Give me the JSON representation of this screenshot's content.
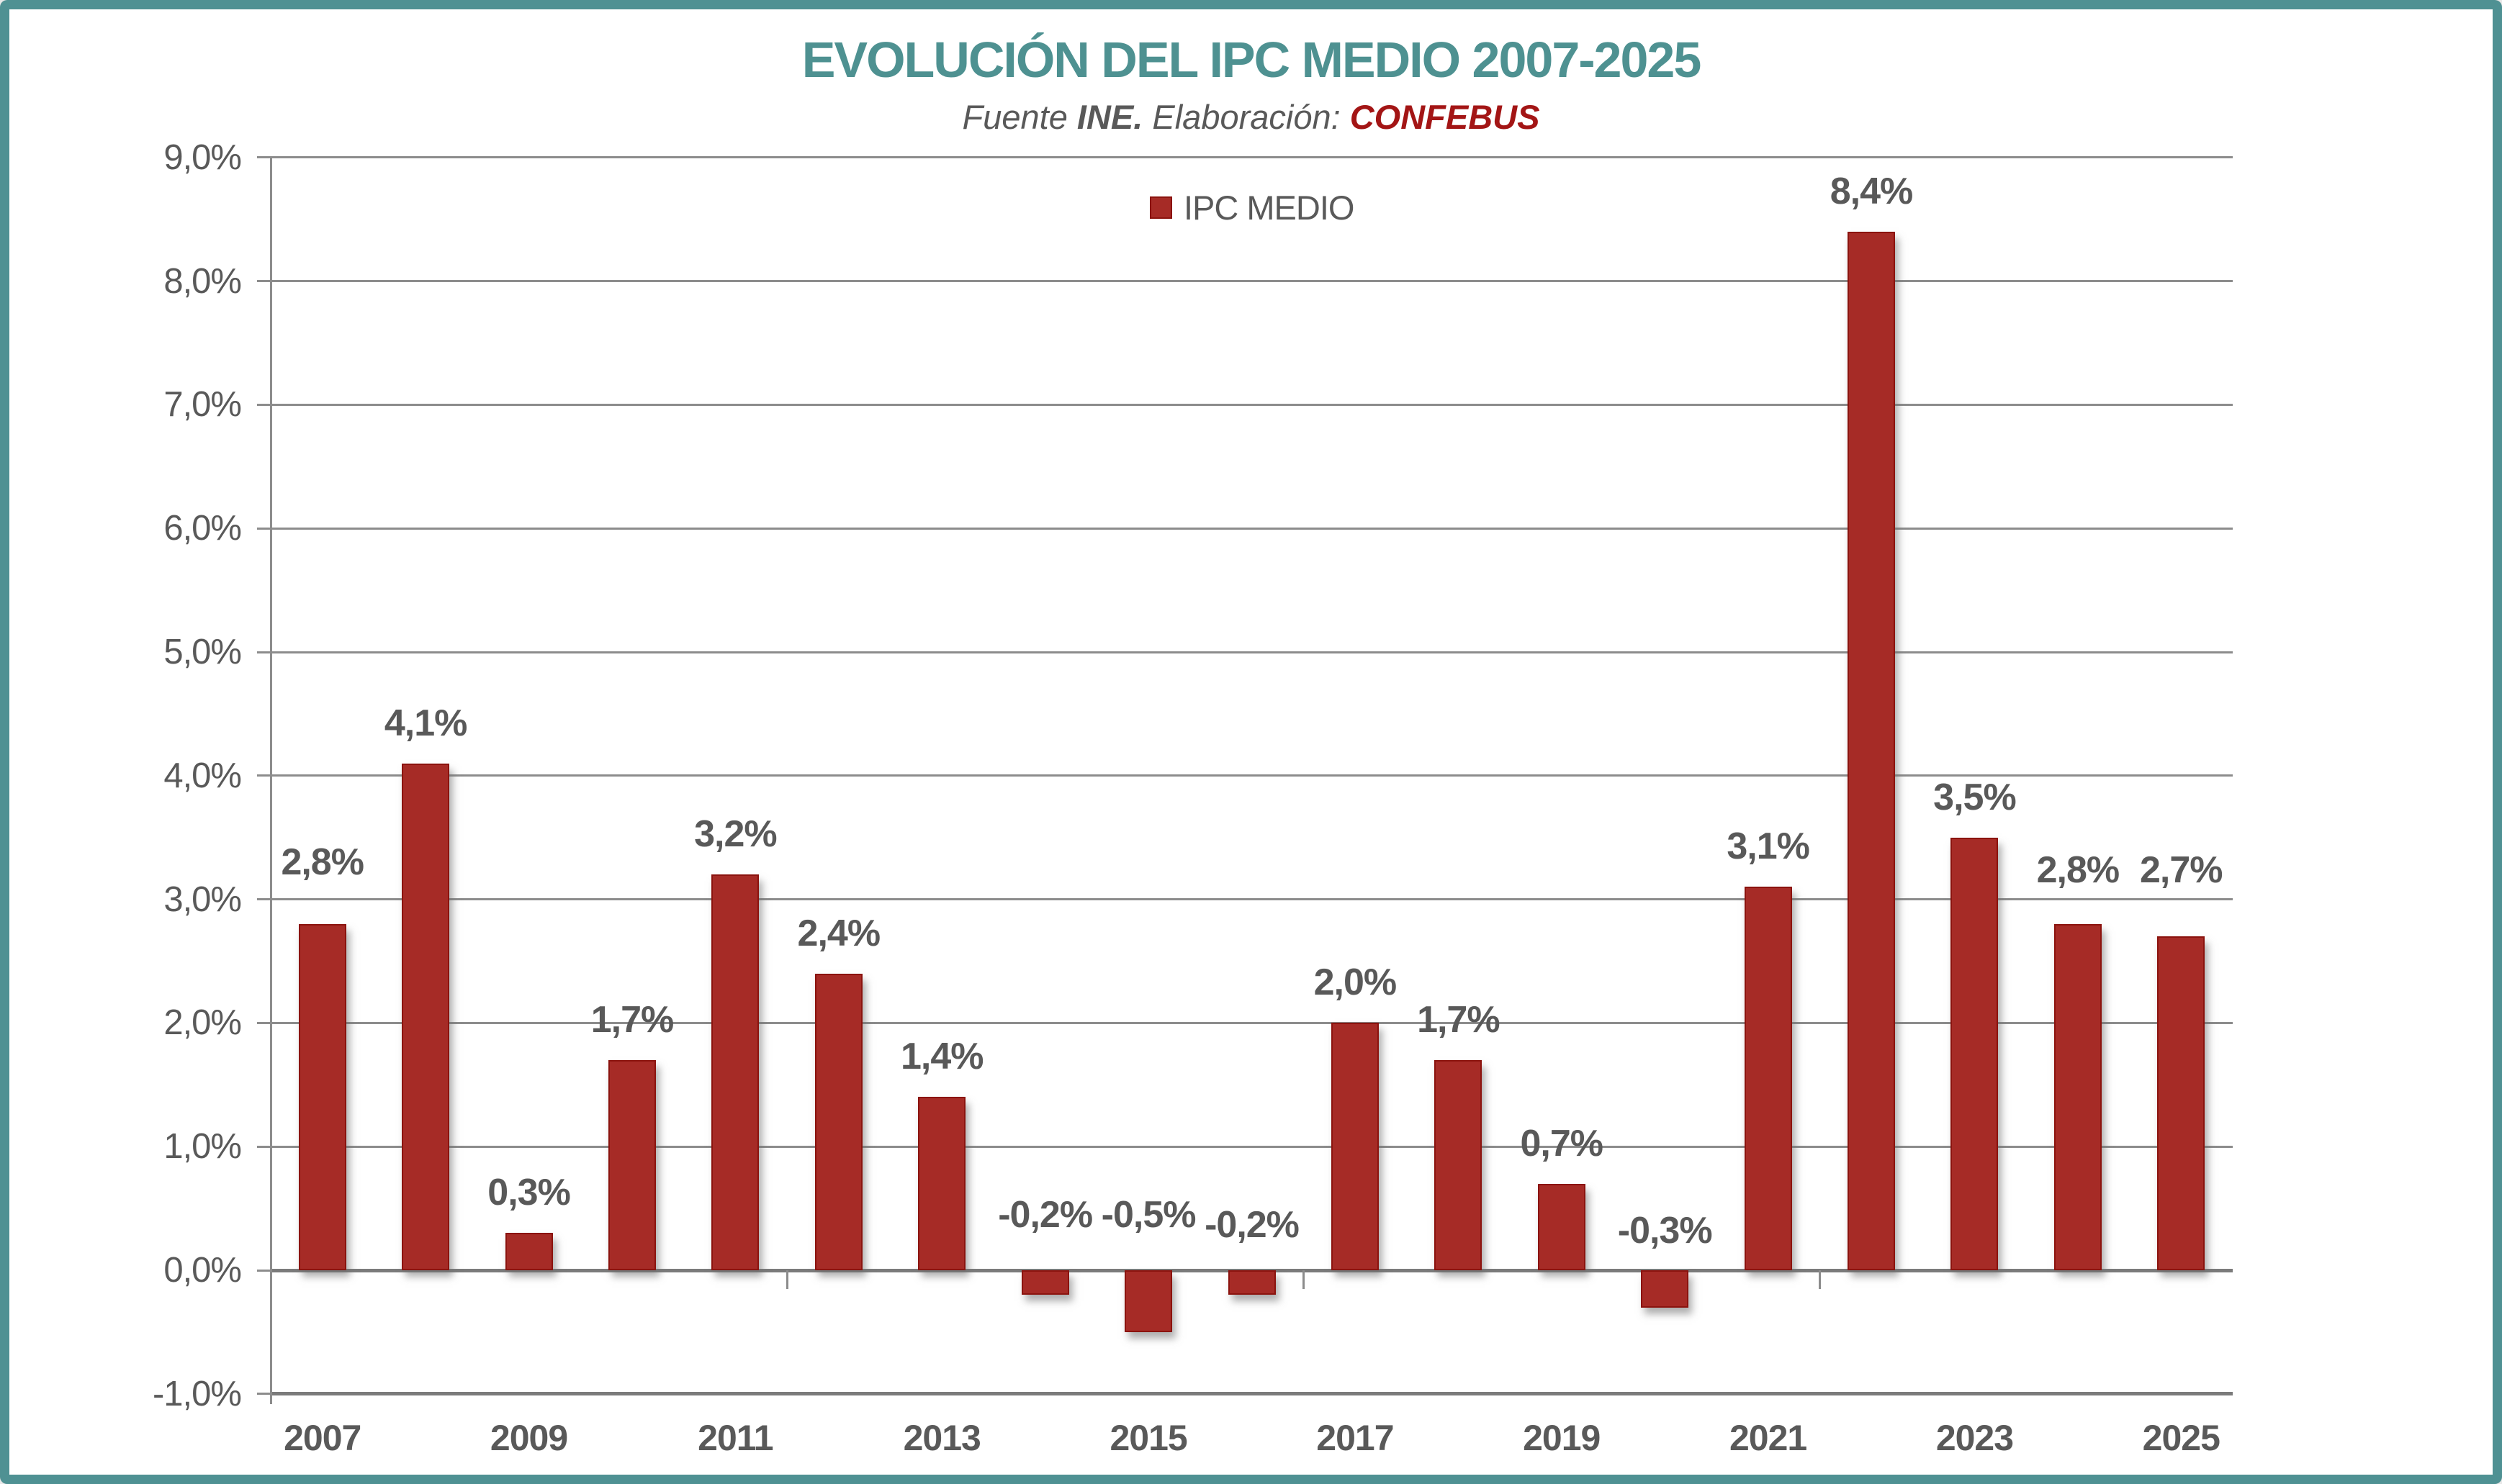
{
  "frame": {
    "border_color": "#4F9193",
    "background_color": "#FFFFFF"
  },
  "header": {
    "title": "EVOLUCIÓN DEL IPC MEDIO 2007-2025",
    "title_color": "#4E9191",
    "subtitle": {
      "prefix": "Fuente ",
      "source": "INE.",
      "middle": " Elaboración: ",
      "org": "CONFEBUS",
      "text_color": "#595959",
      "org_color": "#A31515"
    }
  },
  "legend": {
    "label": "IPC MEDIO",
    "marker_color": "#A62B26",
    "position": "top-center"
  },
  "chart_data": {
    "type": "bar",
    "title": "EVOLUCIÓN DEL IPC MEDIO 2007-2025",
    "source_note": "Fuente INE. Elaboración: CONFEBUS",
    "categories": [
      "2007",
      "2008",
      "2009",
      "2010",
      "2011",
      "2012",
      "2013",
      "2014",
      "2015",
      "2016",
      "2017",
      "2018",
      "2019",
      "2020",
      "2021",
      "2022",
      "2023",
      "2024",
      "2025"
    ],
    "series": [
      {
        "name": "IPC MEDIO",
        "values": [
          2.8,
          4.1,
          0.3,
          1.7,
          3.2,
          2.4,
          1.4,
          -0.2,
          -0.5,
          -0.2,
          2.0,
          1.7,
          0.7,
          -0.3,
          3.1,
          8.4,
          3.5,
          2.8,
          2.7
        ]
      }
    ],
    "value_labels": [
      "2,8%",
      "4,1%",
      "0,3%",
      "1,7%",
      "3,2%",
      "2,4%",
      "1,4%",
      "-0,2%",
      "-0,5%",
      "-0,2%",
      "2,0%",
      "1,7%",
      "0,7%",
      "-0,3%",
      "3,1%",
      "8,4%",
      "3,5%",
      "2,8%",
      "2,7%"
    ],
    "ylim": [
      -1.0,
      9.0
    ],
    "y_step": 1.0,
    "y_tick_labels": [
      "9,0%",
      "8,0%",
      "7,0%",
      "6,0%",
      "5,0%",
      "4,0%",
      "3,0%",
      "2,0%",
      "1,0%",
      "0,0%",
      "-1,0%"
    ],
    "x_axis_labels": [
      "2007",
      "2009",
      "2011",
      "2013",
      "2015",
      "2017",
      "2019",
      "2021",
      "2023",
      "2025"
    ],
    "x_axis_label_interval": 2,
    "grid": true,
    "legend_position": "top-center",
    "bar_color": "#A62B26",
    "bar_border_color": "#8B130E",
    "value_label_color": "#595959",
    "axis_text_color": "#595959",
    "grid_color": "#8C8C8C"
  }
}
